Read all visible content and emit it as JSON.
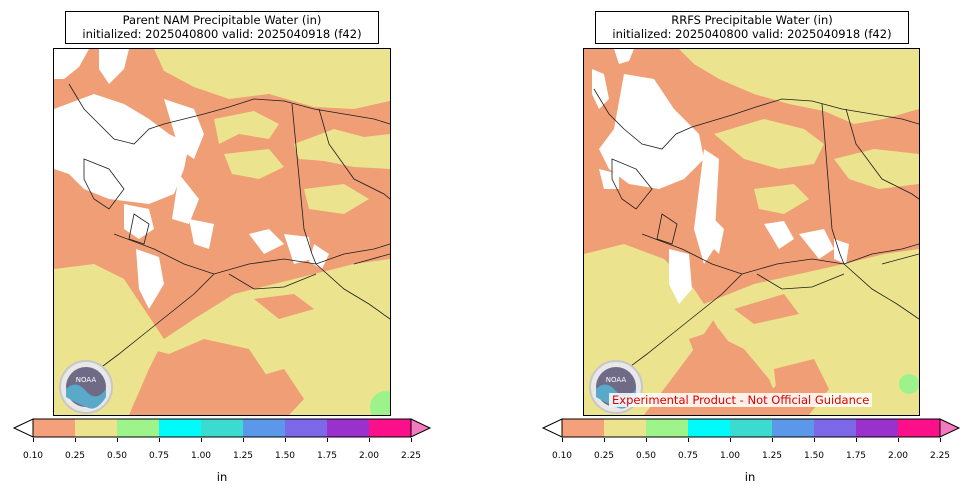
{
  "panels": [
    {
      "title_line1": "Parent NAM Precipitable Water (in)",
      "title_line2": "initialized: 2025040800 valid: 2025040918 (f42)"
    },
    {
      "title_line1": "RRFS Precipitable Water (in)",
      "title_line2": "initialized: 2025040800 valid: 2025040918 (f42)",
      "disclaimer": "Experimental Product - Not Official Guidance"
    }
  ],
  "colorbar": {
    "ticks": [
      "0.10",
      "0.25",
      "0.50",
      "0.75",
      "1.00",
      "1.25",
      "1.50",
      "1.75",
      "2.00",
      "2.25"
    ],
    "colors": [
      "#f4a07a",
      "#ede38f",
      "#9cf48b",
      "#00fbfb",
      "#3cdbd0",
      "#5b98e9",
      "#7d68e9",
      "#9b31cc",
      "#fc1089"
    ],
    "under_color": "#ffffff",
    "over_color": "#f47ac0",
    "unit_label": "in"
  },
  "logo": {
    "text": "NOAA"
  },
  "palette": {
    "low": "#ef9e76",
    "mid": "#ece38e",
    "green": "#9cf28b",
    "missing": "#ffffff"
  }
}
